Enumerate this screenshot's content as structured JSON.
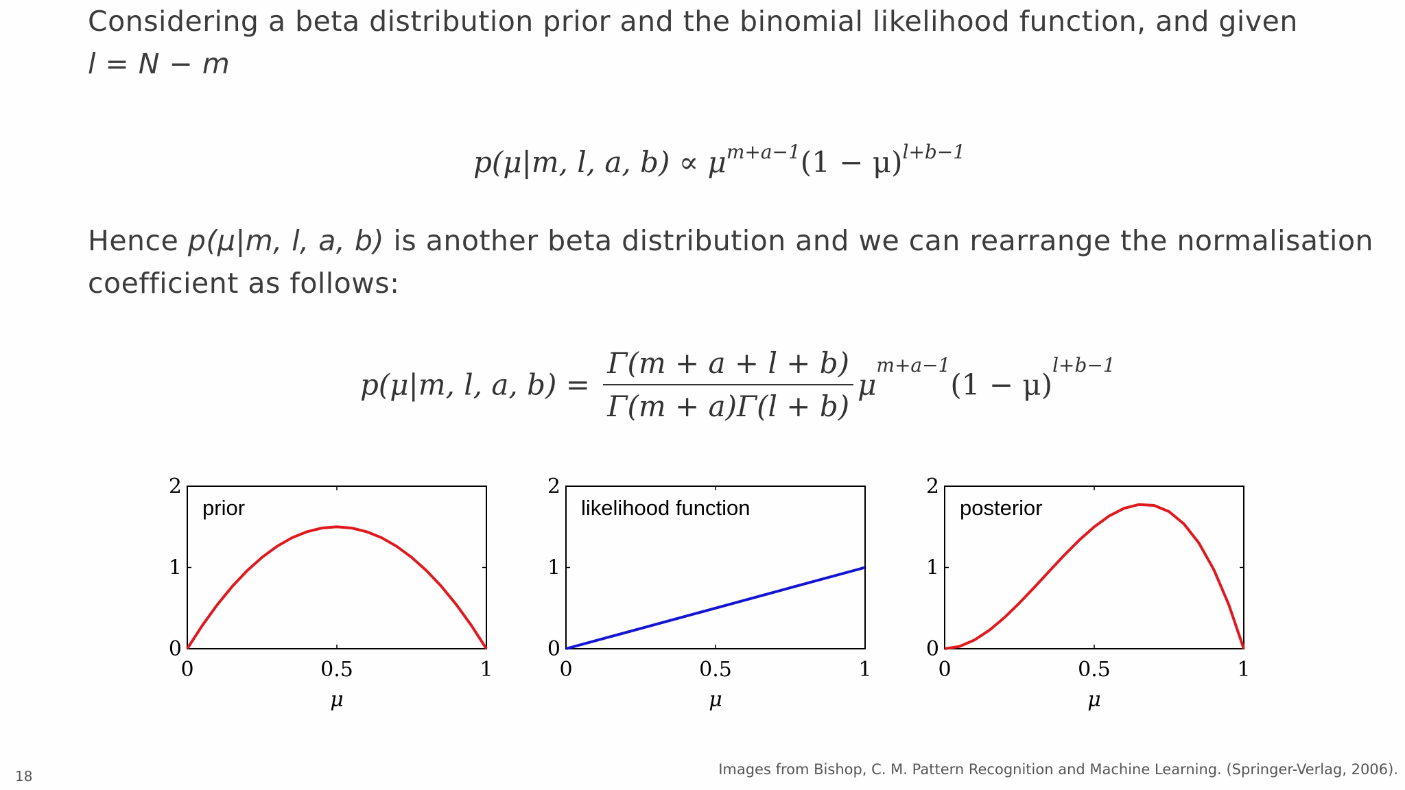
{
  "slide": {
    "intro_text": "Considering a beta distribution prior and the binomial likelihood function, and given",
    "given_eq": "l = N − m",
    "eq1": {
      "lhs": "p(μ|m, l, a, b) ∝ μ",
      "exp1": "m+a−1",
      "mid": "(1 − μ)",
      "exp2": "l+b−1"
    },
    "hence_text_1": "Hence ",
    "hence_math": "p(μ|m, l, a, b)",
    "hence_text_2": " is another beta distribution and we can rearrange the normalisation",
    "hence_text_3": "coefficient as follows:",
    "eq2": {
      "lhs": "p(μ|m, l, a, b) =",
      "num": "Γ(m + a + l + b)",
      "den": "Γ(m + a)Γ(l + b)",
      "mu": "μ",
      "exp1": "m+a−1",
      "mid": "(1 − μ)",
      "exp2": "l+b−1"
    },
    "page_number": "18",
    "credit": "Images from Bishop, C. M. Pattern Recognition and Machine Learning. (Springer-Verlag, 2006)."
  },
  "chart_data": [
    {
      "type": "line",
      "title": "prior",
      "xlabel": "μ",
      "xlim": [
        0,
        1
      ],
      "ylim": [
        0,
        2
      ],
      "xticks": [
        "0",
        "0.5",
        "1"
      ],
      "yticks": [
        "0",
        "1",
        "2"
      ],
      "color": "#e0191e",
      "series": [
        {
          "x": [
            0,
            0.05,
            0.1,
            0.15,
            0.2,
            0.25,
            0.3,
            0.35,
            0.4,
            0.45,
            0.5,
            0.55,
            0.6,
            0.65,
            0.7,
            0.75,
            0.8,
            0.85,
            0.9,
            0.95,
            1
          ],
          "y": [
            0,
            0.285,
            0.54,
            0.765,
            0.96,
            1.125,
            1.26,
            1.365,
            1.44,
            1.485,
            1.5,
            1.485,
            1.44,
            1.365,
            1.26,
            1.125,
            0.96,
            0.765,
            0.54,
            0.285,
            0
          ]
        }
      ]
    },
    {
      "type": "line",
      "title": "likelihood function",
      "xlabel": "μ",
      "xlim": [
        0,
        1
      ],
      "ylim": [
        0,
        2
      ],
      "xticks": [
        "0",
        "0.5",
        "1"
      ],
      "yticks": [
        "0",
        "1",
        "2"
      ],
      "color": "#1414d2",
      "series": [
        {
          "x": [
            0,
            0.25,
            0.5,
            0.75,
            1
          ],
          "y": [
            0,
            0.25,
            0.5,
            0.75,
            1
          ]
        }
      ]
    },
    {
      "type": "line",
      "title": "posterior",
      "xlabel": "μ",
      "xlim": [
        0,
        1
      ],
      "ylim": [
        0,
        2
      ],
      "xticks": [
        "0",
        "0.5",
        "1"
      ],
      "yticks": [
        "0",
        "1",
        "2"
      ],
      "color": "#e0191e",
      "series": [
        {
          "x": [
            0,
            0.05,
            0.1,
            0.15,
            0.2,
            0.25,
            0.3,
            0.35,
            0.4,
            0.45,
            0.5,
            0.55,
            0.6,
            0.65,
            0.7,
            0.75,
            0.8,
            0.85,
            0.9,
            0.95,
            1
          ],
          "y": [
            0,
            0.0285,
            0.108,
            0.2295,
            0.384,
            0.5625,
            0.756,
            0.9555,
            1.152,
            1.3365,
            1.5,
            1.6335,
            1.728,
            1.7745,
            1.764,
            1.6875,
            1.536,
            1.3005,
            0.972,
            0.5415,
            0
          ]
        }
      ]
    }
  ]
}
